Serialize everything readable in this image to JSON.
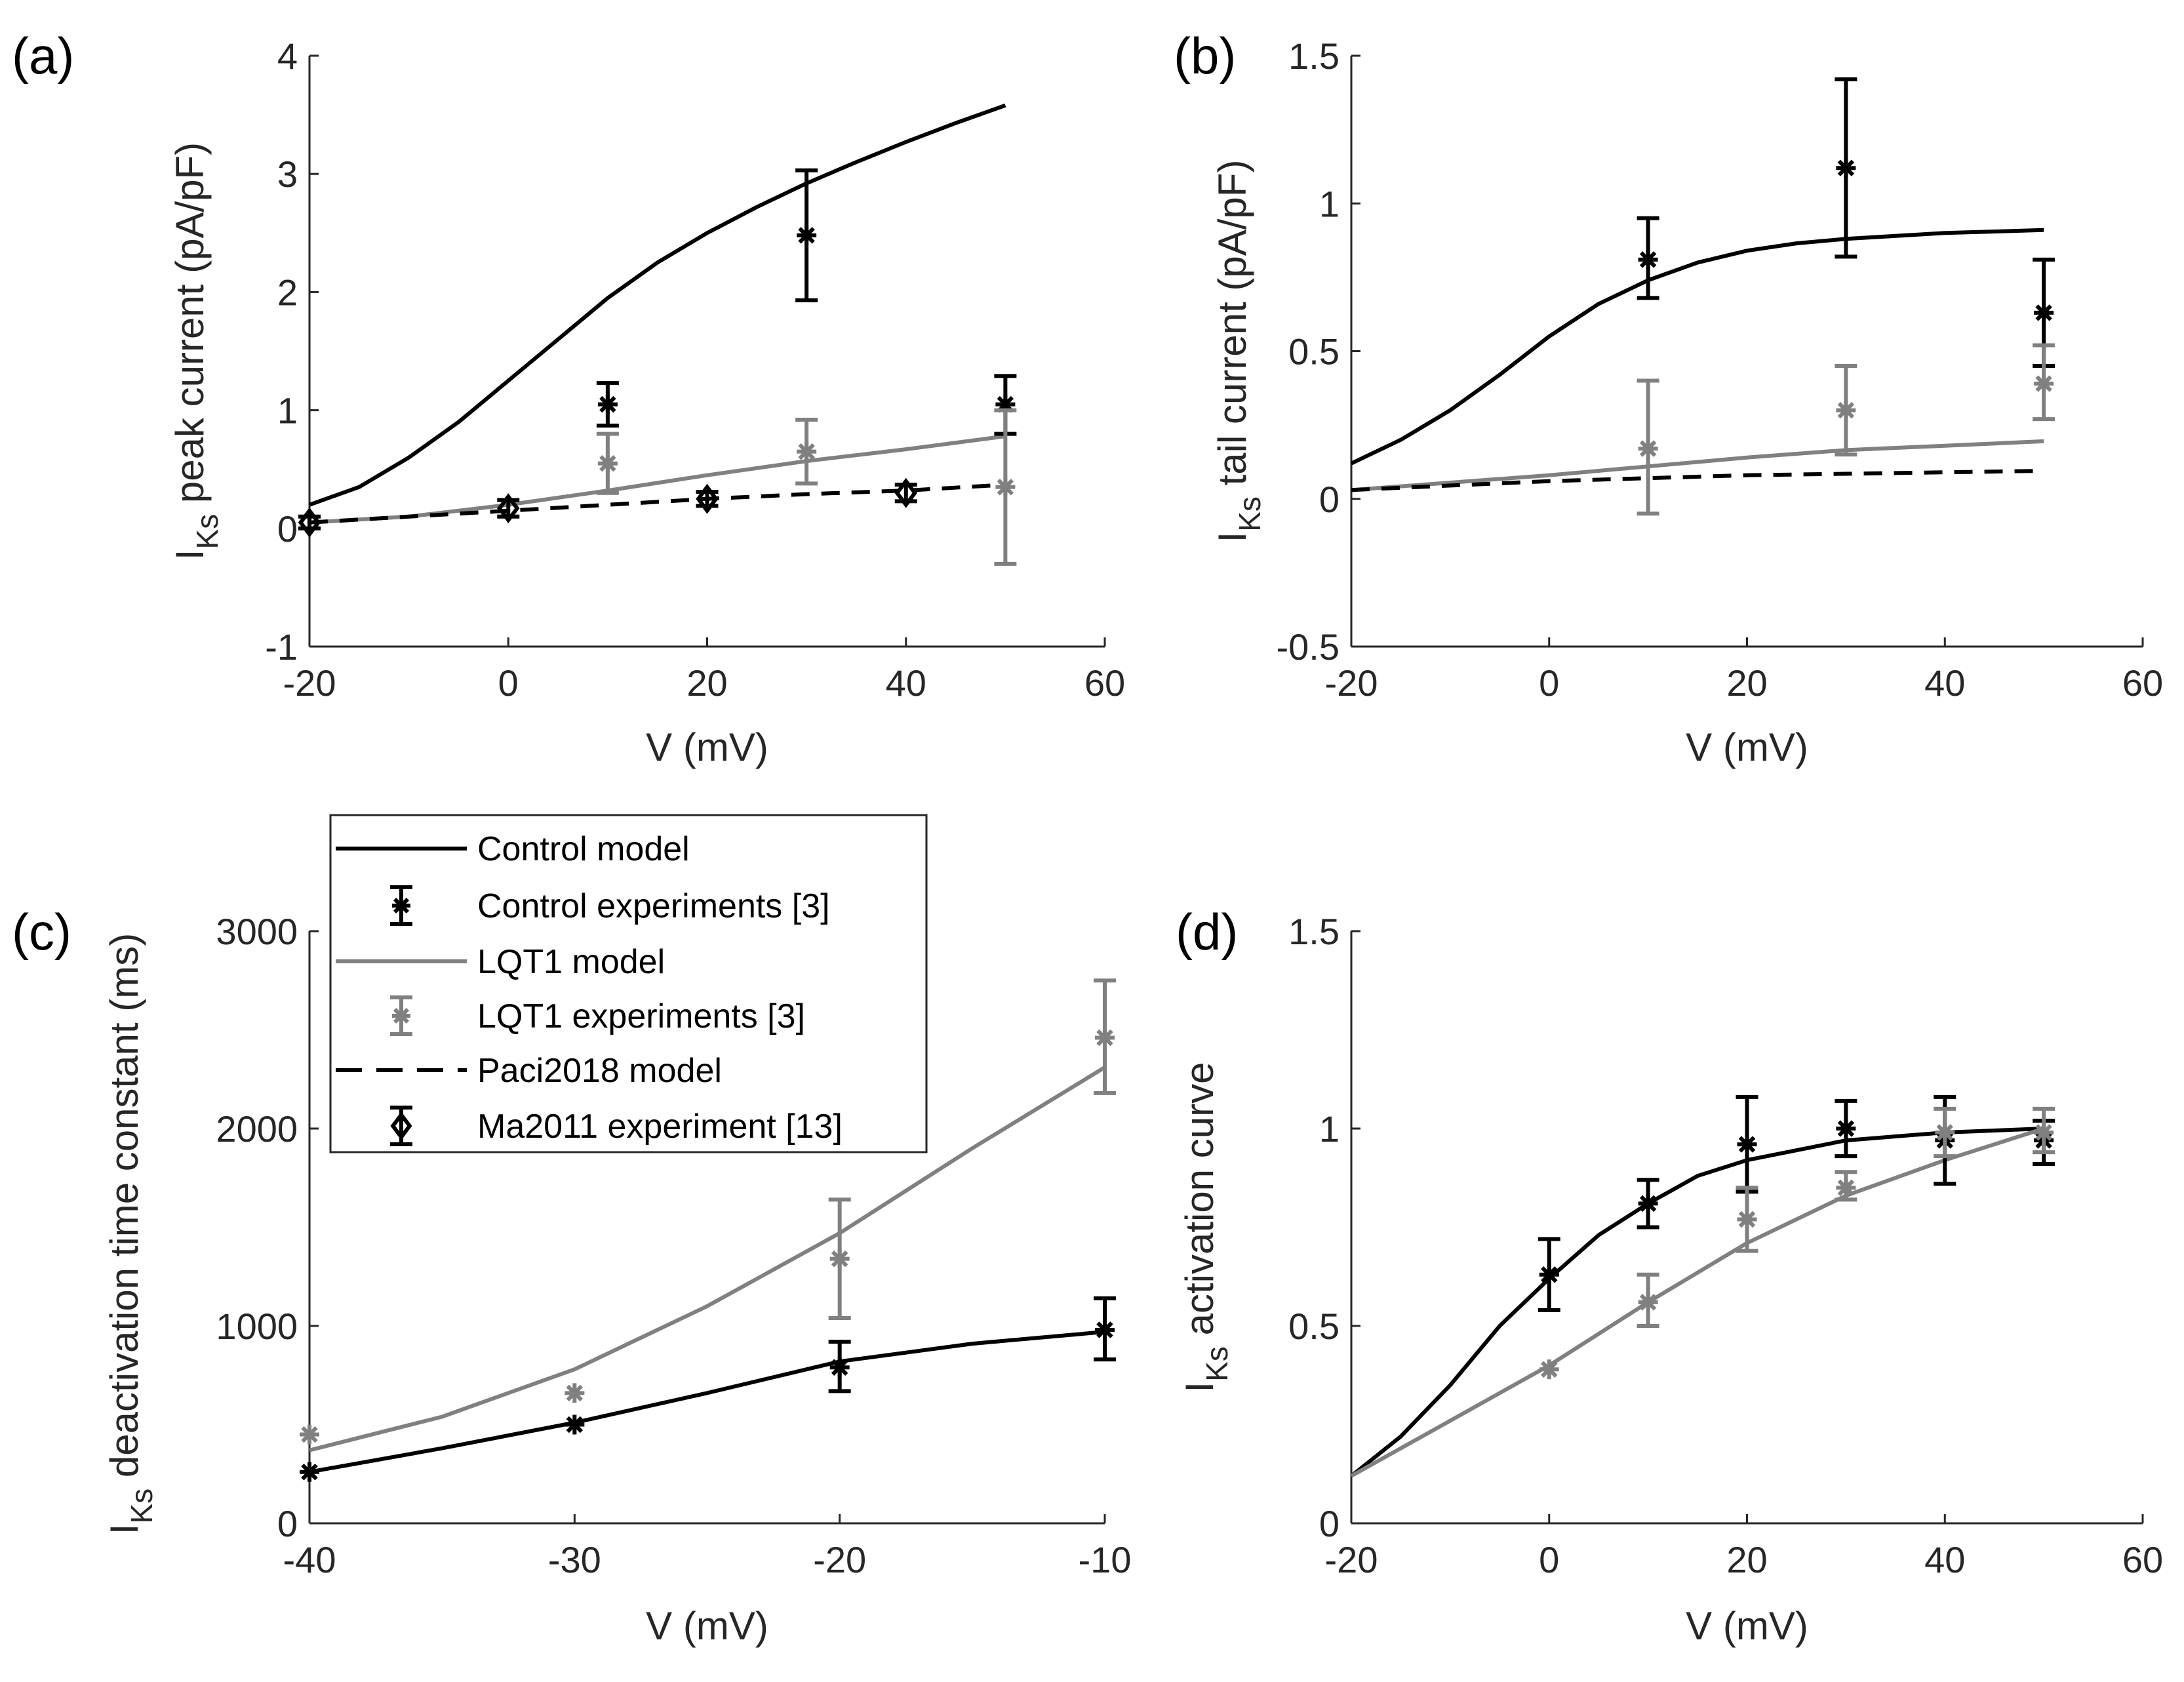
{
  "colors": {
    "control": "#000000",
    "lqt1": "#808080",
    "axis": "#262626"
  },
  "legend": {
    "entries": [
      {
        "label": "Control model",
        "style": "line",
        "color": "#000000"
      },
      {
        "label": "Control experiments [3]",
        "style": "errorbar-star",
        "color": "#000000"
      },
      {
        "label": "LQT1  model",
        "style": "line",
        "color": "#808080"
      },
      {
        "label": "LQT1 experiments [3]",
        "style": "errorbar-star",
        "color": "#808080"
      },
      {
        "label": "Paci2018 model",
        "style": "dashed",
        "color": "#000000"
      },
      {
        "label": "Ma2011 experiment [13]",
        "style": "errorbar-diamond",
        "color": "#000000"
      }
    ]
  },
  "chart_data": [
    {
      "panel": "(a)",
      "type": "line",
      "xlabel": "V (mV)",
      "ylabel_main": "I",
      "ylabel_sub": "Ks",
      "ylabel_rest": " peak current (pA/pF)",
      "xlim": [
        -20,
        60
      ],
      "ylim": [
        -1,
        4
      ],
      "xticks": [
        -20,
        0,
        20,
        40,
        60
      ],
      "yticks": [
        -1,
        0,
        1,
        2,
        3,
        4
      ],
      "series": [
        {
          "name": "Control model",
          "kind": "line",
          "color": "#000000",
          "x": [
            -20,
            -15,
            -10,
            -5,
            0,
            5,
            10,
            15,
            20,
            25,
            30,
            35,
            40,
            45,
            50
          ],
          "y": [
            0.2,
            0.35,
            0.6,
            0.9,
            1.25,
            1.6,
            1.95,
            2.25,
            2.5,
            2.72,
            2.92,
            3.1,
            3.27,
            3.43,
            3.58
          ]
        },
        {
          "name": "LQT1 model",
          "kind": "line",
          "color": "#808080",
          "x": [
            -20,
            -10,
            0,
            10,
            20,
            30,
            40,
            50
          ],
          "y": [
            0.05,
            0.1,
            0.2,
            0.32,
            0.45,
            0.57,
            0.67,
            0.78
          ]
        },
        {
          "name": "Paci2018 model",
          "kind": "dashed",
          "color": "#000000",
          "x": [
            -20,
            -10,
            0,
            10,
            20,
            30,
            40,
            50
          ],
          "y": [
            0.05,
            0.1,
            0.15,
            0.2,
            0.25,
            0.29,
            0.32,
            0.37
          ]
        },
        {
          "name": "Control experiments",
          "kind": "star",
          "color": "#000000",
          "x": [
            10,
            30,
            50
          ],
          "y": [
            1.05,
            2.48,
            1.05
          ],
          "lo": [
            0.87,
            1.93,
            0.8
          ],
          "hi": [
            1.23,
            3.03,
            1.29
          ]
        },
        {
          "name": "LQT1 experiments",
          "kind": "star",
          "color": "#808080",
          "x": [
            10,
            30,
            50
          ],
          "y": [
            0.55,
            0.65,
            0.35
          ],
          "lo": [
            0.3,
            0.38,
            -0.3
          ],
          "hi": [
            0.8,
            0.92,
            1.0
          ]
        },
        {
          "name": "Ma2011 experiment",
          "kind": "diamond",
          "color": "#000000",
          "x": [
            -20,
            0,
            20,
            40
          ],
          "y": [
            0.05,
            0.17,
            0.25,
            0.3
          ],
          "lo": [
            0.0,
            0.1,
            0.19,
            0.23
          ],
          "hi": [
            0.1,
            0.24,
            0.31,
            0.37
          ]
        }
      ]
    },
    {
      "panel": "(b)",
      "type": "line",
      "xlabel": "V (mV)",
      "ylabel_main": "I",
      "ylabel_sub": "Ks",
      "ylabel_rest": " tail current (pA/pF)",
      "xlim": [
        -20,
        60
      ],
      "ylim": [
        -0.5,
        1.5
      ],
      "xticks": [
        -20,
        0,
        20,
        40,
        60
      ],
      "yticks": [
        -0.5,
        0,
        0.5,
        1,
        1.5
      ],
      "series": [
        {
          "name": "Control model",
          "kind": "line",
          "color": "#000000",
          "x": [
            -20,
            -15,
            -10,
            -5,
            0,
            5,
            10,
            15,
            20,
            25,
            30,
            40,
            50
          ],
          "y": [
            0.12,
            0.2,
            0.3,
            0.42,
            0.55,
            0.66,
            0.74,
            0.8,
            0.84,
            0.865,
            0.88,
            0.9,
            0.91
          ]
        },
        {
          "name": "LQT1 model",
          "kind": "line",
          "color": "#808080",
          "x": [
            -20,
            -10,
            0,
            10,
            20,
            30,
            40,
            50
          ],
          "y": [
            0.03,
            0.055,
            0.08,
            0.11,
            0.14,
            0.165,
            0.18,
            0.195
          ]
        },
        {
          "name": "Paci2018 model",
          "kind": "dashed",
          "color": "#000000",
          "x": [
            -20,
            0,
            20,
            50
          ],
          "y": [
            0.03,
            0.06,
            0.08,
            0.095
          ]
        },
        {
          "name": "Control experiments",
          "kind": "star",
          "color": "#000000",
          "x": [
            10,
            30,
            50
          ],
          "y": [
            0.81,
            1.12,
            0.63
          ],
          "lo": [
            0.68,
            0.82,
            0.45
          ],
          "hi": [
            0.95,
            1.42,
            0.81
          ]
        },
        {
          "name": "LQT1 experiments",
          "kind": "star",
          "color": "#808080",
          "x": [
            10,
            30,
            50
          ],
          "y": [
            0.17,
            0.3,
            0.39
          ],
          "lo": [
            -0.05,
            0.15,
            0.27
          ],
          "hi": [
            0.4,
            0.45,
            0.52
          ]
        }
      ]
    },
    {
      "panel": "(c)",
      "type": "line",
      "xlabel": "V (mV)",
      "ylabel_main": "I",
      "ylabel_sub": "Ks",
      "ylabel_rest": " deactivation time constant (ms)",
      "xlim": [
        -40,
        -10
      ],
      "ylim": [
        0,
        3000
      ],
      "xticks": [
        -40,
        -30,
        -20,
        -10
      ],
      "yticks": [
        0,
        1000,
        2000,
        3000
      ],
      "series": [
        {
          "name": "Control model",
          "kind": "line",
          "color": "#000000",
          "x": [
            -40,
            -35,
            -30,
            -25,
            -20,
            -15,
            -10
          ],
          "y": [
            260,
            380,
            510,
            660,
            820,
            910,
            970
          ]
        },
        {
          "name": "LQT1 model",
          "kind": "line",
          "color": "#808080",
          "x": [
            -40,
            -35,
            -30,
            -25,
            -20,
            -15,
            -10
          ],
          "y": [
            370,
            540,
            780,
            1100,
            1470,
            1900,
            2310
          ]
        },
        {
          "name": "Control experiments",
          "kind": "star",
          "color": "#000000",
          "x": [
            -40,
            -30,
            -20,
            -10
          ],
          "y": [
            260,
            500,
            790,
            980
          ],
          "lo": [
            260,
            500,
            670,
            830
          ],
          "hi": [
            260,
            500,
            920,
            1140
          ]
        },
        {
          "name": "LQT1 experiments",
          "kind": "star",
          "color": "#808080",
          "x": [
            -40,
            -30,
            -20,
            -10
          ],
          "y": [
            450,
            660,
            1340,
            2460
          ],
          "lo": [
            450,
            660,
            1040,
            2180
          ],
          "hi": [
            450,
            660,
            1640,
            2750
          ]
        }
      ]
    },
    {
      "panel": "(d)",
      "type": "line",
      "xlabel": "V (mV)",
      "ylabel_main": "I",
      "ylabel_sub": "Ks",
      "ylabel_rest": " activation curve",
      "xlim": [
        -20,
        60
      ],
      "ylim": [
        0,
        1.5
      ],
      "xticks": [
        -20,
        0,
        20,
        40,
        60
      ],
      "yticks": [
        0,
        0.5,
        1,
        1.5
      ],
      "series": [
        {
          "name": "Control model",
          "kind": "line",
          "color": "#000000",
          "x": [
            -20,
            -15,
            -10,
            -5,
            0,
            5,
            10,
            15,
            20,
            30,
            40,
            50
          ],
          "y": [
            0.12,
            0.22,
            0.35,
            0.5,
            0.62,
            0.73,
            0.81,
            0.88,
            0.92,
            0.97,
            0.99,
            1.0
          ]
        },
        {
          "name": "LQT1 model",
          "kind": "line",
          "color": "#808080",
          "x": [
            -20,
            -10,
            0,
            10,
            20,
            30,
            40,
            50
          ],
          "y": [
            0.12,
            0.26,
            0.4,
            0.56,
            0.71,
            0.83,
            0.92,
            1.0
          ]
        },
        {
          "name": "Control experiments",
          "kind": "star",
          "color": "#000000",
          "x": [
            0,
            10,
            20,
            30,
            40,
            50
          ],
          "y": [
            0.63,
            0.81,
            0.96,
            1.0,
            0.97,
            0.97
          ],
          "lo": [
            0.54,
            0.75,
            0.84,
            0.93,
            0.86,
            0.91
          ],
          "hi": [
            0.72,
            0.87,
            1.08,
            1.07,
            1.08,
            1.02
          ]
        },
        {
          "name": "LQT1 experiments",
          "kind": "star",
          "color": "#808080",
          "x": [
            0,
            10,
            20,
            30,
            40,
            50
          ],
          "y": [
            0.39,
            0.56,
            0.77,
            0.85,
            0.99,
            0.99
          ],
          "lo": [
            0.39,
            0.5,
            0.69,
            0.82,
            0.93,
            0.94
          ],
          "hi": [
            0.39,
            0.63,
            0.85,
            0.89,
            1.05,
            1.05
          ]
        }
      ]
    }
  ]
}
